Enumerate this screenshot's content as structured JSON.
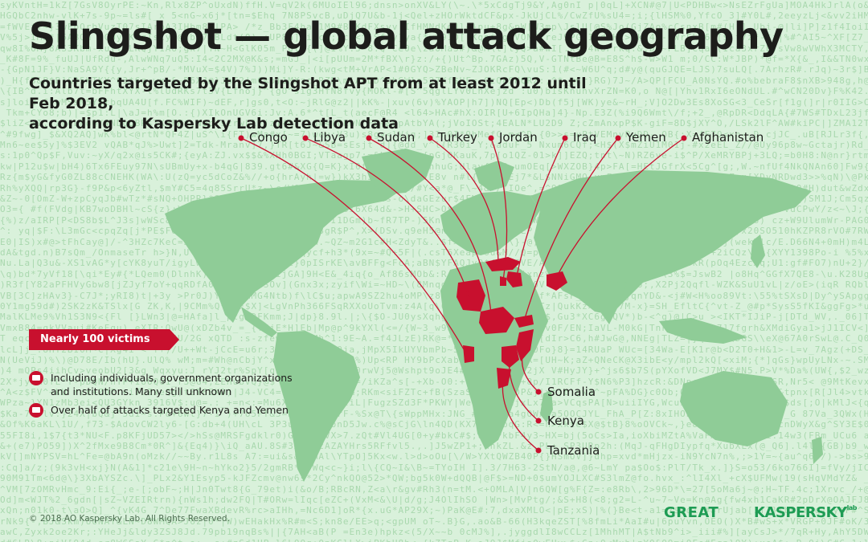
{
  "title": "Slingshot — global attack geography",
  "subtitle_line1": "Countries targeted by the Slingshot APT from at least 2012 until Feb 2018,",
  "subtitle_line2": "according to Kaspersky Lab detection data",
  "top_countries": [
    "Congo",
    "Libya",
    "Sudan",
    "Turkey",
    "Jordan",
    "Iraq",
    "Yemen",
    "Afghanistan"
  ],
  "side_countries": [
    "Somalia",
    "Kenya",
    "Tanzania"
  ],
  "victims_badge": "Nearly 100 victims",
  "note1": "Including individuals, government organizations and institutions. Many still unknown",
  "note2": "Over half of attacks targeted Kenya and Yemen",
  "copyright": "© 2018 AO Kaspersky Lab. All Rights Reserved.",
  "logo_great": "GREAT",
  "logo_kaspersky": "KASPERSKY",
  "logo_lab": "lab",
  "colors": {
    "map_land": "#8fcc97",
    "target": "#c8102e",
    "background": "#d9f1db",
    "accent_green": "#1e9c54"
  },
  "icons": [
    "group-icon",
    "target-icon"
  ]
}
